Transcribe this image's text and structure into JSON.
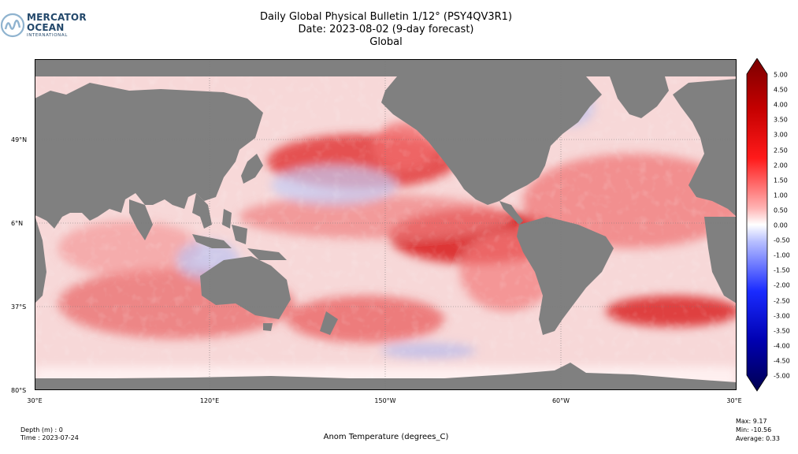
{
  "header": {
    "logo_line1": "MERCATOR",
    "logo_line2": "OCEAN",
    "logo_line3": "INTERNATIONAL",
    "title_line1": "Daily Global Physical Bulletin 1/12° (PSY4QV3R1)",
    "title_line2": "Date: 2023-08-02 (9-day forecast)",
    "title_line3": "Global"
  },
  "map": {
    "lat_labels": [
      "49°N",
      "6°N",
      "37°S",
      "80°S"
    ],
    "lon_labels": [
      "30°E",
      "120°E",
      "150°W",
      "60°W",
      "30°E"
    ],
    "colors": {
      "land": "#808080",
      "ice": "#ffffff",
      "warm": "#d40000",
      "cool": "#1e3cd8"
    }
  },
  "colorbar": {
    "ticks": [
      "5.00",
      "4.50",
      "4.00",
      "3.50",
      "3.00",
      "2.50",
      "2.00",
      "1.50",
      "1.00",
      "0.50",
      "0.00",
      "-0.50",
      "-1.00",
      "-1.50",
      "-2.00",
      "-2.50",
      "-3.00",
      "-3.50",
      "-4.00",
      "-4.50",
      "-5.00"
    ],
    "range": [
      -5,
      5
    ]
  },
  "footer": {
    "depth": "Depth (m) : 0",
    "time": "Time : 2023-07-24",
    "variable": "Anom Temperature (degrees_C)",
    "max": "Max:  9.17",
    "min": "Min: -10.56",
    "average": "Average:  0.33"
  }
}
